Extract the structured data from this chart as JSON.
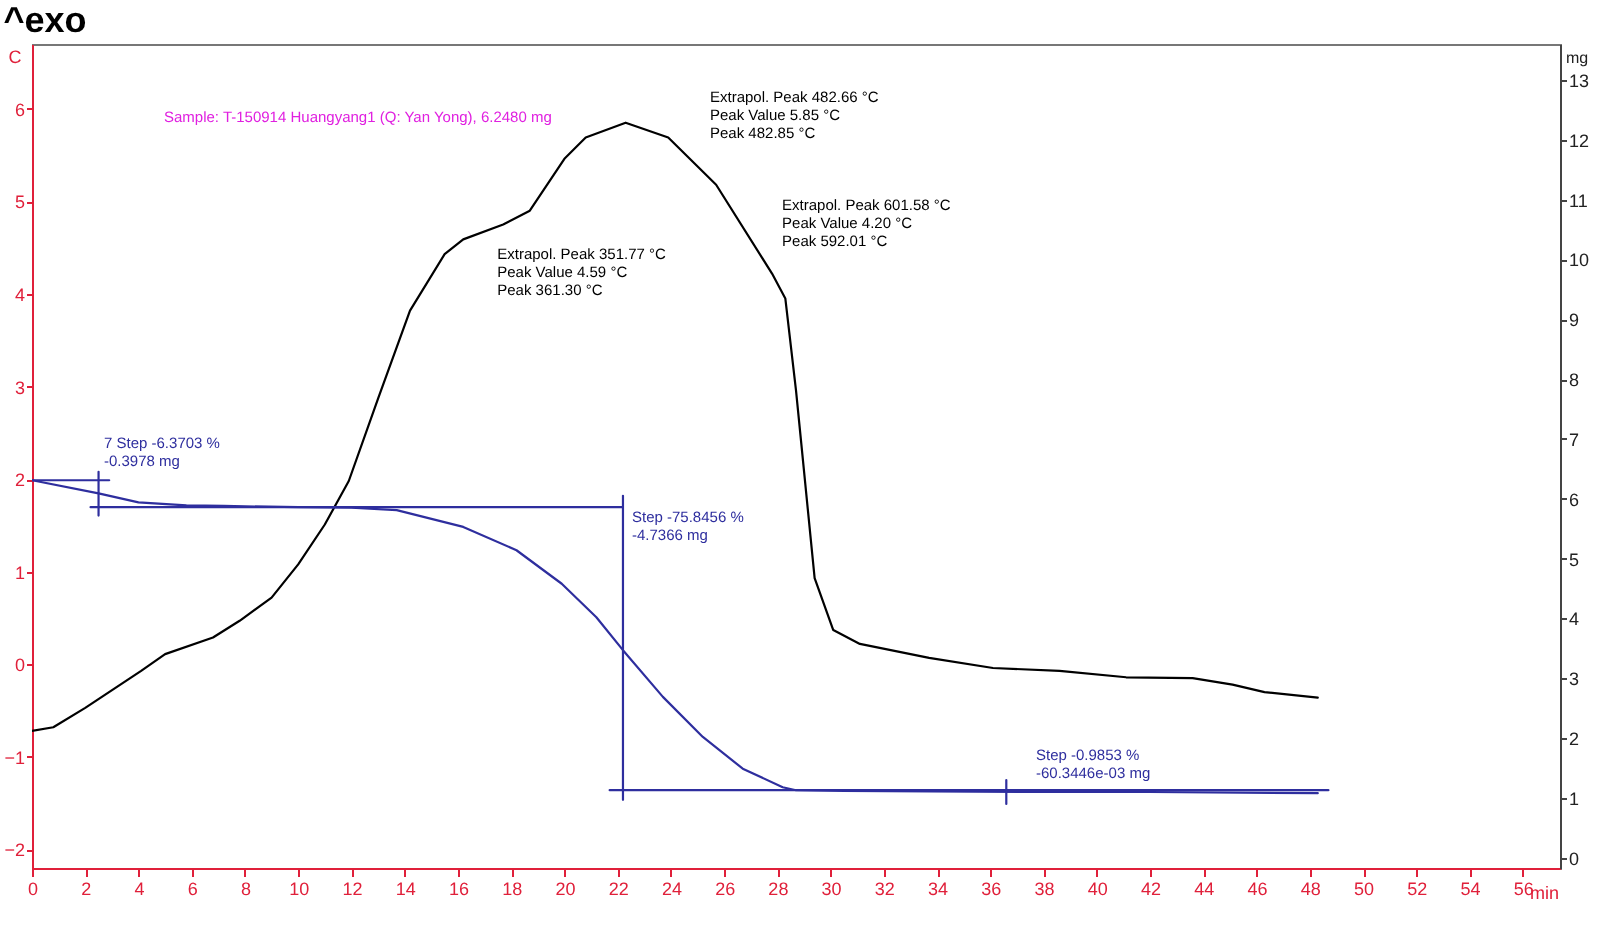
{
  "chart_data": {
    "type": "line",
    "title": "^exo",
    "xlabel": "min",
    "ylabel": "C",
    "y2label": "mg",
    "xlim": [
      0,
      57.4
    ],
    "xticks": [
      0,
      2,
      4,
      6,
      8,
      10,
      12,
      14,
      16,
      18,
      20,
      22,
      24,
      26,
      28,
      30,
      32,
      34,
      36,
      38,
      40,
      42,
      44,
      46,
      48,
      50,
      52,
      54,
      56
    ],
    "ylim": [
      -2.2,
      6.7
    ],
    "yticks": [
      -2,
      -1,
      0,
      1,
      2,
      3,
      4,
      5,
      6
    ],
    "y2lim": [
      -0.17,
      13.6
    ],
    "y2ticks": [
      0,
      1,
      2,
      3,
      4,
      5,
      6,
      7,
      8,
      9,
      10,
      11,
      12,
      13
    ],
    "series": [
      {
        "color": "#000000",
        "x": [
          0,
          0.8,
          2.0,
          4.1,
          5.0,
          6.8,
          7.8,
          9.0,
          10.0,
          11.0,
          11.9,
          13.0,
          14.2,
          15.5,
          16.2,
          17.7,
          18.7,
          20.0,
          20.8,
          22.3,
          23.9,
          25.7,
          27.8,
          28.3,
          28.7,
          28.9,
          29.4,
          30.1,
          31.1,
          33.7,
          36.1,
          38.6,
          41.1,
          43.6,
          45.1,
          46.3,
          48.3
        ],
        "values": [
          -0.72,
          -0.68,
          -0.47,
          -0.07,
          0.11,
          0.29,
          0.47,
          0.72,
          1.08,
          1.51,
          1.98,
          2.87,
          3.82,
          4.43,
          4.59,
          4.75,
          4.9,
          5.46,
          5.69,
          5.85,
          5.69,
          5.18,
          4.22,
          3.95,
          2.96,
          2.38,
          0.93,
          0.37,
          0.22,
          0.07,
          -0.04,
          -0.07,
          -0.14,
          -0.15,
          -0.22,
          -0.3,
          -0.36
        ]
      },
      {
        "axis": "y2",
        "color": "#2e2e9e",
        "x": [
          0,
          2.5,
          4.0,
          5.8,
          7.2,
          10.0,
          12.0,
          13.7,
          16.2,
          18.2,
          19.9,
          21.2,
          22.2,
          23.7,
          25.2,
          26.7,
          28.2,
          28.7,
          30.5,
          37.0,
          42.0,
          48.3
        ],
        "values": [
          6.31,
          6.09,
          5.94,
          5.89,
          5.88,
          5.86,
          5.85,
          5.81,
          5.53,
          5.14,
          4.58,
          4.02,
          3.47,
          2.69,
          2.02,
          1.49,
          1.18,
          1.13,
          1.12,
          1.1,
          1.1,
          1.08
        ]
      },
      {
        "axis": "y2",
        "color": "#2e2e9e",
        "x": [
          0,
          2.9
        ],
        "values": [
          6.31,
          6.31
        ]
      },
      {
        "axis": "y2",
        "color": "#2e2e9e",
        "x": [
          2.5,
          2.5
        ],
        "values": [
          6.45,
          5.72
        ]
      },
      {
        "axis": "y2",
        "color": "#2e2e9e",
        "x": [
          2.2,
          22.2
        ],
        "values": [
          5.86,
          5.86
        ]
      },
      {
        "axis": "y2",
        "color": "#2e2e9e",
        "x": [
          22.2,
          22.2
        ],
        "values": [
          6.05,
          0.97
        ]
      },
      {
        "axis": "y2",
        "color": "#2e2e9e",
        "x": [
          21.7,
          48.7
        ],
        "values": [
          1.13,
          1.13
        ]
      },
      {
        "axis": "y2",
        "color": "#2e2e9e",
        "x": [
          36.6,
          36.6
        ],
        "values": [
          1.3,
          0.9
        ]
      }
    ],
    "annotations": [
      "Sample: T-150914 Huangyang1 (Q: Yan Yong), 6.2480 mg",
      {
        "text": "Extrapol. Peak 351.77 °C\nPeak Value 4.59 °C\nPeak 361.30 °C",
        "x": 16.2,
        "y": 4.59
      },
      "Extrapol. Peak 482.66 °C\nPeak Value 5.85 °C\nPeak 482.85 °C",
      {
        "text": "Extrapol. Peak 601.58 °C\nPeak Value 4.20 °C\nPeak 592.01 °C",
        "x": 27.8,
        "y": 4.22
      },
      "7 Step -6.3703 %\n-0.3978 mg",
      "Step -75.8456 %\n-4.7366 mg",
      "Step -0.9853 %\n-60.3446e-03 mg"
    ]
  }
}
